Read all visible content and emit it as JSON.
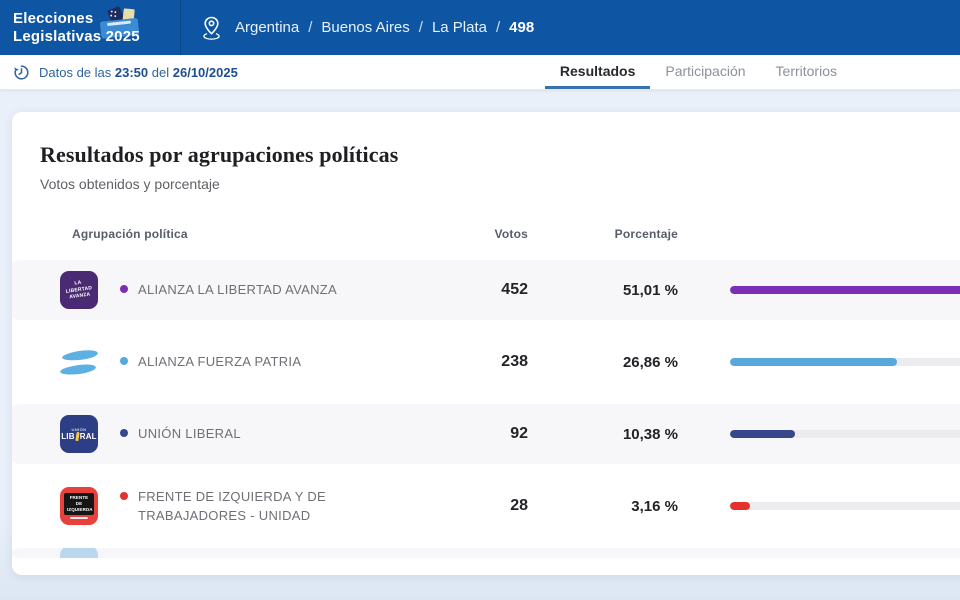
{
  "header": {
    "logo": {
      "line1": "Elecciones",
      "line2": "Legislativas 2025"
    },
    "breadcrumb": {
      "items": [
        "Argentina",
        "Buenos Aires",
        "La Plata"
      ],
      "separator": "/",
      "current": "498"
    }
  },
  "statusbar": {
    "prefix": "Datos de las",
    "time": "23:50",
    "connector": "del",
    "date": "26/10/2025"
  },
  "tabs": [
    {
      "label": "Resultados",
      "active": true
    },
    {
      "label": "Participación",
      "active": false
    },
    {
      "label": "Territorios",
      "active": false
    }
  ],
  "card": {
    "title": "Resultados por agrupaciones políticas",
    "subtitle": "Votos obtenidos y porcentaje"
  },
  "table": {
    "headers": {
      "party": "Agrupación política",
      "votes": "Votos",
      "pct": "Porcentaje"
    },
    "rows": [
      {
        "party": "ALIANZA LA LIBERTAD AVANZA",
        "votes": "452",
        "pct": "51,01 %",
        "pct_value": 51.01,
        "color": "#7c2fb5",
        "logo": "lla",
        "logo_text": "LA LIBERTAD AVANZA"
      },
      {
        "party": "ALIANZA FUERZA PATRIA",
        "votes": "238",
        "pct": "26,86 %",
        "pct_value": 26.86,
        "color": "#58a8dc",
        "logo": "flag",
        "logo_text": ""
      },
      {
        "party": "UNIÓN LIBERAL",
        "votes": "92",
        "pct": "10,38 %",
        "pct_value": 10.38,
        "color": "#38478b",
        "logo": "ul",
        "logo_text_top": "UNIÓN",
        "logo_text_main_a": "LIB",
        "logo_text_main_b": "RAL"
      },
      {
        "party": "FRENTE DE IZQUIERDA Y DE TRABAJADORES - UNIDAD",
        "votes": "28",
        "pct": "3,16 %",
        "pct_value": 3.16,
        "color": "#e3312b",
        "logo": "fit",
        "logo_text": "FRENTE DE IZQUIERDA"
      }
    ],
    "has_partial_next_row": true
  },
  "chart_data": {
    "type": "bar",
    "categories": [
      "ALIANZA LA LIBERTAD AVANZA",
      "ALIANZA FUERZA PATRIA",
      "UNIÓN LIBERAL",
      "FRENTE DE IZQUIERDA Y DE TRABAJADORES - UNIDAD"
    ],
    "series": [
      {
        "name": "Votos",
        "values": [
          452,
          238,
          92,
          28
        ]
      },
      {
        "name": "Porcentaje",
        "values": [
          51.01,
          26.86,
          10.38,
          3.16
        ]
      }
    ],
    "bar_colors": [
      "#7c2fb5",
      "#58a8dc",
      "#38478b",
      "#e3312b"
    ],
    "title": "Resultados por agrupaciones políticas",
    "xlabel": "",
    "ylabel": "",
    "xlim_pct": [
      0,
      100
    ],
    "grid": false,
    "legend_position": "none"
  }
}
